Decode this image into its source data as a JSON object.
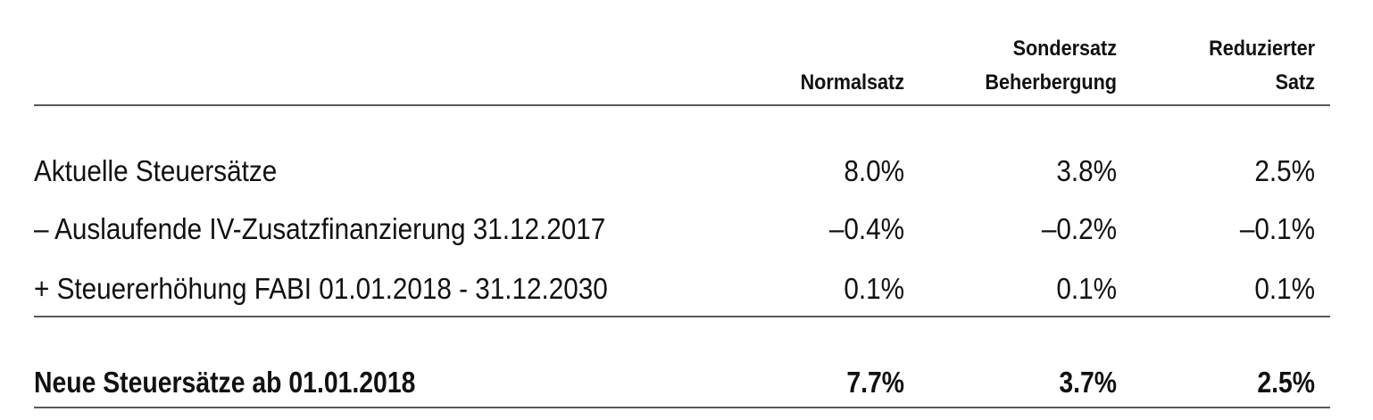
{
  "table": {
    "columns": [
      [
        "Normalsatz"
      ],
      [
        "Sondersatz",
        "Beherbergung"
      ],
      [
        "Reduzierter",
        "Satz"
      ]
    ],
    "rows": [
      [
        "Aktuelle Steuersätze",
        "8.0%",
        "3.8%",
        "2.5%"
      ],
      [
        "– Auslaufende IV-Zusatzfinanzierung 31.12.2017",
        "–0.4%",
        "–0.2%",
        "–0.1%"
      ],
      [
        "+ Steuererhöhung FABI 01.01.2018 - 31.12.2030",
        "0.1%",
        "0.1%",
        "0.1%"
      ]
    ],
    "total": [
      "Neue Steuersätze ab 01.01.2018",
      "7.7%",
      "3.7%",
      "2.5%"
    ]
  }
}
